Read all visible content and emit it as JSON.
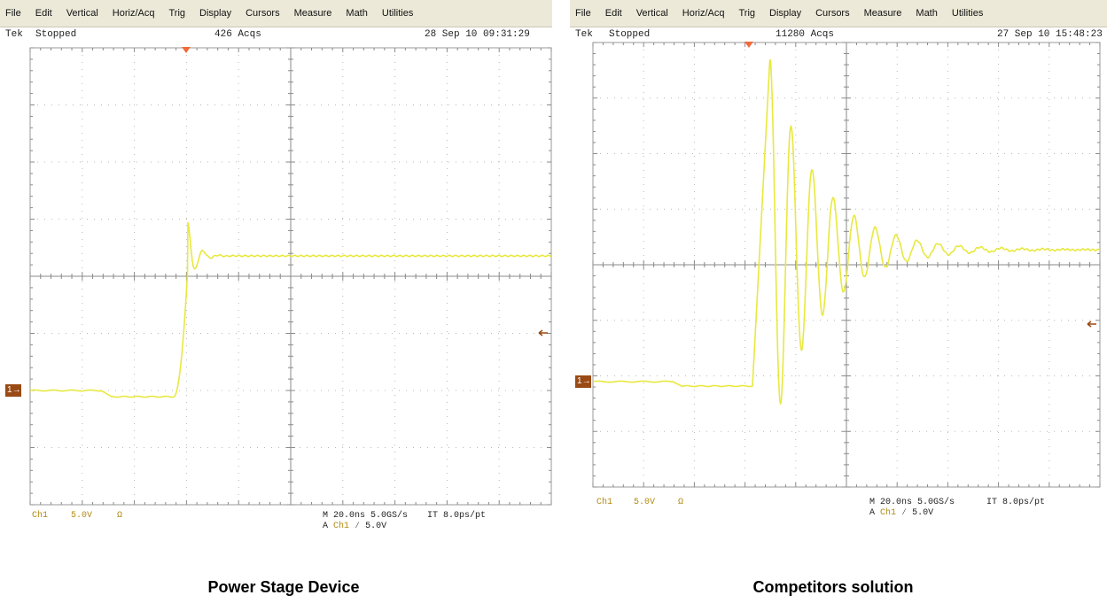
{
  "left": {
    "menu": [
      "File",
      "Edit",
      "Vertical",
      "Horiz/Acq",
      "Trig",
      "Display",
      "Cursors",
      "Measure",
      "Math",
      "Utilities"
    ],
    "brand": "Tek",
    "state": "Stopped",
    "acqs": "426 Acqs",
    "datetime": "28 Sep 10 09:31:29",
    "ch_label": "Ch1",
    "volts_div": "5.0V",
    "coupling": "Ω",
    "readout_line1": "M 20.0ns 5.0GS/s",
    "readout_it": "IT 8.0ps/pt",
    "readout_trig_prefix": "A",
    "readout_trig_ch": "Ch1",
    "readout_trig_suffix": "⁄ 5.0V",
    "marker": "1",
    "caption": "Power Stage Device"
  },
  "right": {
    "menu": [
      "File",
      "Edit",
      "Vertical",
      "Horiz/Acq",
      "Trig",
      "Display",
      "Cursors",
      "Measure",
      "Math",
      "Utilities"
    ],
    "brand": "Tek",
    "state": "Stopped",
    "acqs": "11280 Acqs",
    "datetime": "27 Sep 10 15:48:23",
    "ch_label": "Ch1",
    "volts_div": "5.0V",
    "coupling": "Ω",
    "readout_line1": "M 20.0ns 5.0GS/s",
    "readout_it": "IT 8.0ps/pt",
    "readout_trig_prefix": "A",
    "readout_trig_ch": "Ch1",
    "readout_trig_suffix": "⁄ 5.0V",
    "marker": "1",
    "caption": "Competitors solution"
  },
  "colors": {
    "trace": "#e8e840",
    "grid": "#b8b8b8",
    "menubar": "#ece9d8",
    "trigger_marker": "#f26a3a",
    "channel_marker": "#9a4a14"
  }
}
